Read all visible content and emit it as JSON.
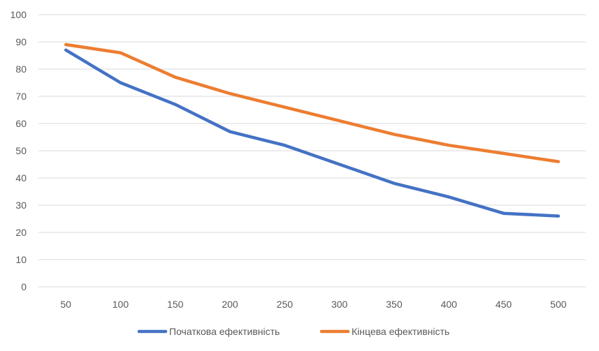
{
  "chart_data": {
    "type": "line",
    "title": "",
    "xlabel": "",
    "ylabel": "",
    "x": [
      50,
      100,
      150,
      200,
      250,
      300,
      350,
      400,
      450,
      500
    ],
    "ylim": [
      0,
      100
    ],
    "yticks": [
      0,
      10,
      20,
      30,
      40,
      50,
      60,
      70,
      80,
      90,
      100
    ],
    "grid": true,
    "legend_position": "bottom",
    "series": [
      {
        "name": "Початкова ефективність",
        "color": "#4472C4",
        "values": [
          87,
          75,
          67,
          57,
          52,
          45,
          38,
          33,
          27,
          26
        ]
      },
      {
        "name": "Кінцева ефективність",
        "color": "#ED7D31",
        "values": [
          89,
          86,
          77,
          71,
          66,
          61,
          56,
          52,
          49,
          46
        ]
      }
    ]
  }
}
